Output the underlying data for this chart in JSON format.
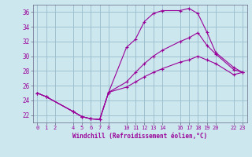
{
  "xlabel": "Windchill (Refroidissement éolien,°C)",
  "background_color": "#cce8ee",
  "grid_color": "#99bbcc",
  "line_color": "#990099",
  "spine_color": "#666688",
  "xlim": [
    -0.5,
    23.5
  ],
  "ylim": [
    21.0,
    37.0
  ],
  "xticks": [
    0,
    1,
    2,
    4,
    5,
    6,
    7,
    8,
    10,
    11,
    12,
    13,
    14,
    16,
    17,
    18,
    19,
    20,
    22,
    23
  ],
  "yticks": [
    22,
    24,
    26,
    28,
    30,
    32,
    34,
    36
  ],
  "line1_x": [
    0,
    1,
    4,
    5,
    6,
    7,
    8,
    10,
    11,
    12,
    13,
    14,
    16,
    17,
    18,
    19,
    20,
    22,
    23
  ],
  "line1_y": [
    25.0,
    24.5,
    22.5,
    21.8,
    21.5,
    21.4,
    25.1,
    31.2,
    32.3,
    34.7,
    35.8,
    36.2,
    36.2,
    36.5,
    35.8,
    33.3,
    30.5,
    28.5,
    27.8
  ],
  "line2_x": [
    0,
    1,
    4,
    5,
    6,
    7,
    8,
    10,
    11,
    12,
    13,
    14,
    16,
    17,
    18,
    19,
    20,
    22,
    23
  ],
  "line2_y": [
    25.0,
    24.5,
    22.5,
    21.8,
    21.5,
    21.4,
    25.1,
    26.5,
    27.8,
    29.0,
    30.0,
    30.8,
    32.0,
    32.5,
    33.2,
    31.5,
    30.3,
    28.2,
    27.8
  ],
  "line3_x": [
    0,
    1,
    4,
    5,
    6,
    7,
    8,
    10,
    11,
    12,
    13,
    14,
    16,
    17,
    18,
    19,
    20,
    22,
    23
  ],
  "line3_y": [
    25.0,
    24.5,
    22.5,
    21.8,
    21.5,
    21.4,
    25.1,
    25.8,
    26.5,
    27.2,
    27.8,
    28.3,
    29.2,
    29.5,
    30.0,
    29.5,
    29.0,
    27.5,
    27.8
  ]
}
